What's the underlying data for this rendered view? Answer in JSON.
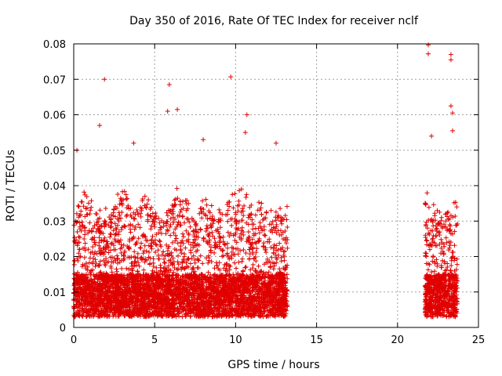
{
  "chart_data": {
    "type": "scatter",
    "title": "Day 350 of 2016, Rate Of TEC Index for receiver nclf",
    "xlabel": "GPS time / hours",
    "ylabel": "ROTI / TECUs",
    "xlim": [
      0,
      25
    ],
    "ylim": [
      0,
      0.08
    ],
    "xticks": [
      "0",
      "5",
      "10",
      "15",
      "20",
      "25"
    ],
    "yticks": [
      "0",
      "0.01",
      "0.02",
      "0.03",
      "0.04",
      "0.05",
      "0.06",
      "0.07",
      "0.08"
    ],
    "grid": true,
    "marker": "+",
    "color": "#e00000",
    "series": [
      {
        "segments": [
          {
            "x_range": [
              0.0,
              13.2
            ],
            "typical_max": 0.038,
            "typical_min": 0.002
          },
          {
            "x_range": [
              21.7,
              23.7
            ],
            "typical_max": 0.04,
            "typical_min": 0.002
          }
        ],
        "notable_points": [
          {
            "x": 1.9,
            "y": 0.07
          },
          {
            "x": 5.9,
            "y": 0.0685
          },
          {
            "x": 9.7,
            "y": 0.0707
          },
          {
            "x": 6.4,
            "y": 0.0615
          },
          {
            "x": 5.8,
            "y": 0.061
          },
          {
            "x": 10.7,
            "y": 0.06
          },
          {
            "x": 10.6,
            "y": 0.055
          },
          {
            "x": 1.6,
            "y": 0.057
          },
          {
            "x": 21.9,
            "y": 0.0797
          },
          {
            "x": 21.9,
            "y": 0.0772
          },
          {
            "x": 23.3,
            "y": 0.077
          },
          {
            "x": 23.3,
            "y": 0.0755
          },
          {
            "x": 23.3,
            "y": 0.0625
          },
          {
            "x": 23.4,
            "y": 0.0605
          },
          {
            "x": 23.4,
            "y": 0.0555
          },
          {
            "x": 22.1,
            "y": 0.054
          },
          {
            "x": 0.2,
            "y": 0.05
          },
          {
            "x": 12.5,
            "y": 0.052
          },
          {
            "x": 8.0,
            "y": 0.053
          },
          {
            "x": 3.7,
            "y": 0.052
          }
        ]
      }
    ]
  }
}
